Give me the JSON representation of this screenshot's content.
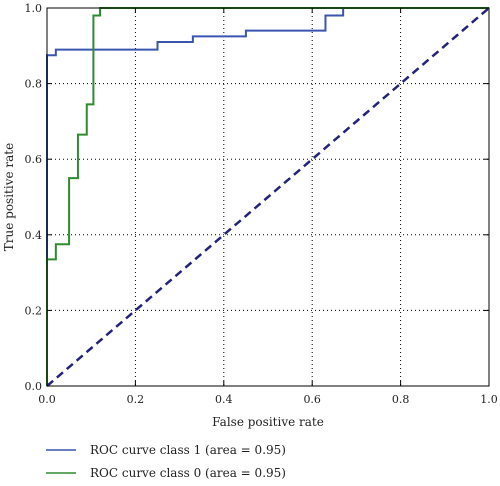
{
  "chart_data": {
    "type": "line",
    "title": "",
    "xlabel": "False positive rate",
    "ylabel": "True positive rate",
    "xlim": [
      0,
      1
    ],
    "ylim": [
      0,
      1
    ],
    "x_ticks": [
      "0.0",
      "0.2",
      "0.4",
      "0.6",
      "0.8",
      "1.0"
    ],
    "y_ticks": [
      "0.0",
      "0.2",
      "0.4",
      "0.6",
      "0.8",
      "1.0"
    ],
    "grid": true,
    "legend_position": "bottom-left-below-plot",
    "series": [
      {
        "name": "ROC curve class 1 (area = 0.95)",
        "color": "#3a55b0",
        "style": "solid",
        "x": [
          0.0,
          0.0,
          0.0,
          0.02,
          0.02,
          0.25,
          0.25,
          0.33,
          0.33,
          0.45,
          0.45,
          0.63,
          0.63,
          0.67,
          0.67,
          1.0
        ],
        "y": [
          0.0,
          0.875,
          0.875,
          0.875,
          0.89,
          0.89,
          0.91,
          0.91,
          0.925,
          0.925,
          0.94,
          0.94,
          0.98,
          0.98,
          1.0,
          1.0
        ]
      },
      {
        "name": "ROC curve class 0 (area = 0.95)",
        "color": "#2e8b2e",
        "style": "solid",
        "x": [
          0.0,
          0.0,
          0.02,
          0.02,
          0.05,
          0.05,
          0.07,
          0.07,
          0.09,
          0.09,
          0.105,
          0.105,
          0.12,
          0.12,
          1.0
        ],
        "y": [
          0.0,
          0.335,
          0.335,
          0.375,
          0.375,
          0.55,
          0.55,
          0.665,
          0.665,
          0.745,
          0.745,
          0.98,
          0.98,
          1.0,
          1.0
        ]
      },
      {
        "color": "#23237a",
        "style": "dashed",
        "x": [
          0.0,
          1.0
        ],
        "y": [
          0.0,
          1.0
        ]
      }
    ]
  }
}
